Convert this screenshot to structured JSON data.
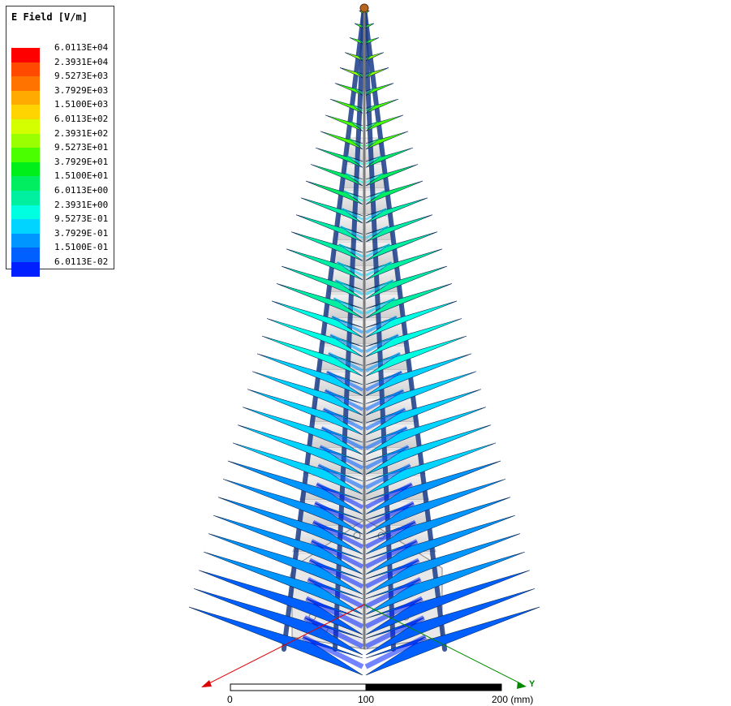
{
  "legend": {
    "title": "E Field [V/m]",
    "entries": [
      {
        "label": "6.0113E+04",
        "color": "#ff0000"
      },
      {
        "label": "2.3931E+04",
        "color": "#ff4a00"
      },
      {
        "label": "9.5273E+03",
        "color": "#ff7400"
      },
      {
        "label": "3.7929E+03",
        "color": "#ffaa00"
      },
      {
        "label": "1.5100E+03",
        "color": "#ffd400"
      },
      {
        "label": "6.0113E+02",
        "color": "#d4ff00"
      },
      {
        "label": "2.3931E+02",
        "color": "#9aff00"
      },
      {
        "label": "9.5273E+01",
        "color": "#4aff00"
      },
      {
        "label": "3.7929E+01",
        "color": "#00ee1a"
      },
      {
        "label": "1.5100E+01",
        "color": "#00ee60"
      },
      {
        "label": "6.0113E+00",
        "color": "#00f0a0"
      },
      {
        "label": "2.3931E+00",
        "color": "#00ffe0"
      },
      {
        "label": "9.5273E-01",
        "color": "#00d4ff"
      },
      {
        "label": "3.7929E-01",
        "color": "#0096ff"
      },
      {
        "label": "1.5100E-01",
        "color": "#0060ff"
      },
      {
        "label": "6.0113E-02",
        "color": "#0020ff"
      }
    ]
  },
  "scale": {
    "tick_0": "0",
    "tick_1": "100",
    "tick_2": "200 (mm)"
  },
  "axes": {
    "x_color": "#dd0000",
    "y_color": "#008800",
    "y_label": "Y"
  }
}
